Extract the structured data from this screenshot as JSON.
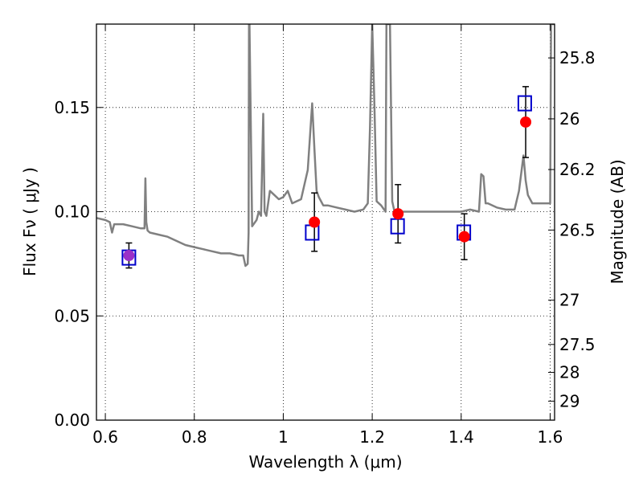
{
  "chart_data": {
    "type": "scatter",
    "xlabel": "Wavelength  λ (μm)",
    "ylabel": "Flux  Fν  ( μJy )",
    "y2label": "Magnitude (AB)",
    "xlim": [
      0.58,
      1.61
    ],
    "ylim": [
      0.0,
      0.19
    ],
    "grid": true,
    "x_ticks": [
      0.6,
      0.8,
      1.0,
      1.2,
      1.4,
      1.6
    ],
    "x_tick_labels": [
      "0.6",
      "0.8",
      "1",
      "1.2",
      "1.4",
      "1.6"
    ],
    "y_ticks": [
      0.0,
      0.05,
      0.1,
      0.15
    ],
    "y_tick_labels": [
      "0.00",
      "0.05",
      "0.10",
      "0.15"
    ],
    "y2_ticks": [
      25.8,
      26.0,
      26.2,
      26.5,
      27.0,
      27.5,
      28.0,
      29.0
    ],
    "y2_tick_labels": [
      "25.8",
      "26",
      "26.2",
      "26.5",
      "27",
      "27.5",
      "28",
      "29"
    ],
    "series": [
      {
        "marker": "model-square",
        "color": "#0000cc",
        "x": [
          0.653,
          1.065,
          1.257,
          1.406,
          1.543
        ],
        "y": [
          0.078,
          0.09,
          0.093,
          0.09,
          0.152
        ]
      },
      {
        "marker": "observed-circle",
        "color": "#ff0000",
        "x": [
          0.653,
          1.07,
          1.258,
          1.407,
          1.545
        ],
        "y": [
          0.079,
          0.095,
          0.099,
          0.088,
          0.143
        ],
        "yerr": [
          0.006,
          0.014,
          0.014,
          0.011,
          0.017
        ],
        "point_colors": [
          "#9b30c8",
          "#ff0000",
          "#ff0000",
          "#ff0000",
          "#ff0000"
        ]
      },
      {
        "marker": "spectrum-line",
        "color": "#808080",
        "x": [
          0.58,
          0.6,
          0.61,
          0.615,
          0.62,
          0.64,
          0.66,
          0.68,
          0.688,
          0.69,
          0.692,
          0.695,
          0.7,
          0.72,
          0.74,
          0.76,
          0.78,
          0.8,
          0.82,
          0.84,
          0.86,
          0.88,
          0.9,
          0.91,
          0.915,
          0.92,
          0.922,
          0.923,
          0.924,
          0.93,
          0.94,
          0.945,
          0.95,
          0.955,
          0.958,
          0.962,
          0.97,
          0.98,
          0.99,
          1.0,
          1.01,
          1.02,
          1.04,
          1.055,
          1.065,
          1.07,
          1.075,
          1.08,
          1.09,
          1.1,
          1.12,
          1.14,
          1.16,
          1.18,
          1.19,
          1.195,
          1.2,
          1.205,
          1.21,
          1.22,
          1.23,
          1.232,
          1.235,
          1.24,
          1.245,
          1.25,
          1.26,
          1.28,
          1.3,
          1.32,
          1.34,
          1.36,
          1.38,
          1.4,
          1.42,
          1.44,
          1.445,
          1.45,
          1.455,
          1.46,
          1.48,
          1.5,
          1.52,
          1.53,
          1.54,
          1.545,
          1.55,
          1.56,
          1.58,
          1.6,
          1.602,
          1.605,
          1.61
        ],
        "y": [
          0.097,
          0.096,
          0.095,
          0.09,
          0.094,
          0.094,
          0.093,
          0.092,
          0.092,
          0.116,
          0.095,
          0.091,
          0.09,
          0.089,
          0.088,
          0.086,
          0.084,
          0.083,
          0.082,
          0.081,
          0.08,
          0.08,
          0.079,
          0.079,
          0.074,
          0.075,
          0.09,
          0.19,
          0.19,
          0.093,
          0.096,
          0.1,
          0.098,
          0.147,
          0.1,
          0.098,
          0.11,
          0.108,
          0.106,
          0.107,
          0.11,
          0.104,
          0.106,
          0.12,
          0.152,
          0.13,
          0.11,
          0.107,
          0.103,
          0.103,
          0.102,
          0.101,
          0.1,
          0.101,
          0.104,
          0.14,
          0.19,
          0.15,
          0.105,
          0.103,
          0.1,
          0.19,
          0.19,
          0.19,
          0.105,
          0.1,
          0.1,
          0.1,
          0.1,
          0.1,
          0.1,
          0.1,
          0.1,
          0.1,
          0.101,
          0.1,
          0.118,
          0.117,
          0.104,
          0.104,
          0.102,
          0.101,
          0.101,
          0.11,
          0.127,
          0.115,
          0.108,
          0.104,
          0.104,
          0.104,
          0.19,
          0.19,
          0.19
        ]
      }
    ]
  }
}
